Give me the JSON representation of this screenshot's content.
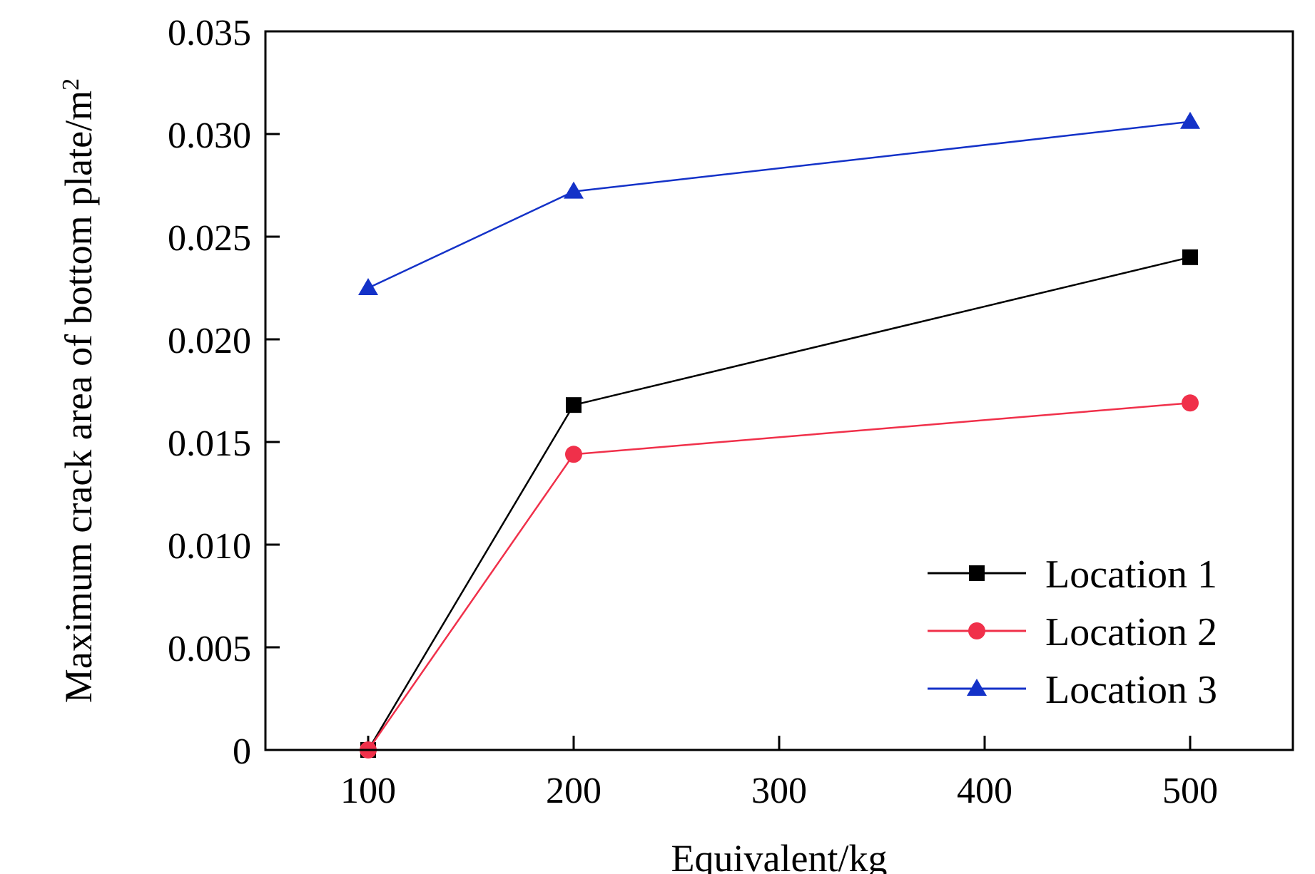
{
  "chart_data": {
    "type": "line",
    "title": "",
    "xlabel": "Equivalent/kg",
    "ylabel": "Maximum crack area of bottom plate/m",
    "ylabel_superscript": "2",
    "xlim": [
      50,
      550
    ],
    "ylim": [
      0,
      0.035
    ],
    "xticks": [
      100,
      200,
      300,
      400,
      500
    ],
    "xtick_labels": [
      "100",
      "200",
      "300",
      "400",
      "500"
    ],
    "yticks": [
      0,
      0.005,
      0.01,
      0.015,
      0.02,
      0.025,
      0.03,
      0.035
    ],
    "ytick_labels": [
      "0",
      "0.005",
      "0.010",
      "0.015",
      "0.020",
      "0.025",
      "0.030",
      "0.035"
    ],
    "x": [
      100,
      200,
      500
    ],
    "grid": false,
    "legend_position": "bottom-right",
    "series": [
      {
        "name": "Location 1",
        "color": "#000000",
        "marker": "square",
        "values": [
          0,
          0.0168,
          0.024
        ]
      },
      {
        "name": "Location 2",
        "color": "#f0304a",
        "marker": "circle",
        "values": [
          0,
          0.0144,
          0.0169
        ]
      },
      {
        "name": "Location 3",
        "color": "#1432c8",
        "marker": "triangle",
        "values": [
          0.0225,
          0.0272,
          0.0306
        ]
      }
    ]
  }
}
